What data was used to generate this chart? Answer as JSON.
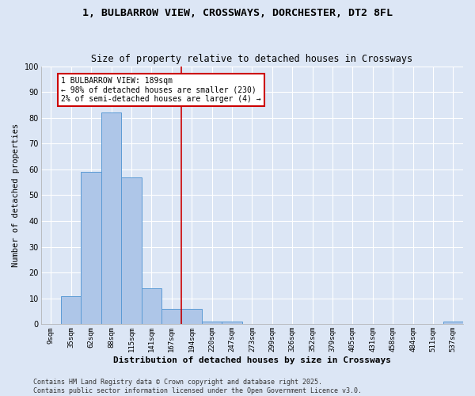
{
  "title_line1": "1, BULBARROW VIEW, CROSSWAYS, DORCHESTER, DT2 8FL",
  "title_line2": "Size of property relative to detached houses in Crossways",
  "xlabel": "Distribution of detached houses by size in Crossways",
  "ylabel": "Number of detached properties",
  "categories": [
    "9sqm",
    "35sqm",
    "62sqm",
    "88sqm",
    "115sqm",
    "141sqm",
    "167sqm",
    "194sqm",
    "220sqm",
    "247sqm",
    "273sqm",
    "299sqm",
    "326sqm",
    "352sqm",
    "379sqm",
    "405sqm",
    "431sqm",
    "458sqm",
    "484sqm",
    "511sqm",
    "537sqm"
  ],
  "values": [
    0,
    11,
    59,
    82,
    57,
    14,
    6,
    6,
    1,
    1,
    0,
    0,
    0,
    0,
    0,
    0,
    0,
    0,
    0,
    0,
    1
  ],
  "bar_color": "#aec6e8",
  "bar_edge_color": "#5b9bd5",
  "fig_bg_color": "#dce6f5",
  "ax_bg_color": "#dce6f5",
  "grid_color": "#ffffff",
  "red_line_x": 7.0,
  "annotation_title": "1 BULBARROW VIEW: 189sqm",
  "annotation_line1": "← 98% of detached houses are smaller (230)",
  "annotation_line2": "2% of semi-detached houses are larger (4) →",
  "annotation_box_color": "#ffffff",
  "annotation_box_edge": "#cc0000",
  "footer_line1": "Contains HM Land Registry data © Crown copyright and database right 2025.",
  "footer_line2": "Contains public sector information licensed under the Open Government Licence v3.0.",
  "ylim": [
    0,
    100
  ],
  "yticks": [
    0,
    10,
    20,
    30,
    40,
    50,
    60,
    70,
    80,
    90,
    100
  ]
}
